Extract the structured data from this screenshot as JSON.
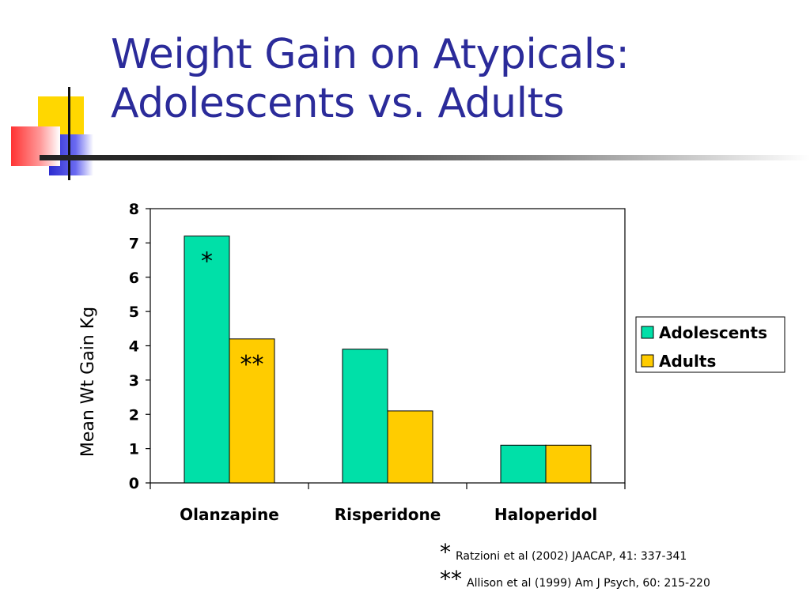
{
  "slide": {
    "title_lines": [
      "Weight Gain on Atypicals:",
      "Adolescents vs. Adults"
    ]
  },
  "chart_data": {
    "type": "bar",
    "categories": [
      "Olanzapine",
      "Risperidone",
      "Haloperidol"
    ],
    "series": [
      {
        "name": "Adolescents",
        "values": [
          7.2,
          3.9,
          1.1
        ],
        "color": "#00e0a8"
      },
      {
        "name": "Adults",
        "values": [
          4.2,
          2.1,
          1.1
        ],
        "color": "#ffcc00"
      }
    ],
    "ylabel": "Mean Wt Gain Kg",
    "ylim": [
      0,
      8
    ],
    "yticks": [
      "0",
      "1",
      "2",
      "3",
      "4",
      "5",
      "6",
      "7",
      "8"
    ],
    "grid": false,
    "legend_position": "right",
    "annotations": [
      {
        "text": "*",
        "category": "Olanzapine",
        "series": "Adolescents"
      },
      {
        "text": "**",
        "category": "Olanzapine",
        "series": "Adults"
      }
    ]
  },
  "references": [
    {
      "mark": "*",
      "text": "Ratzioni et al (2002) JAACAP, 41: 337-341"
    },
    {
      "mark": "**",
      "text": "Allison et al (1999) Am J Psych, 60: 215-220"
    }
  ]
}
